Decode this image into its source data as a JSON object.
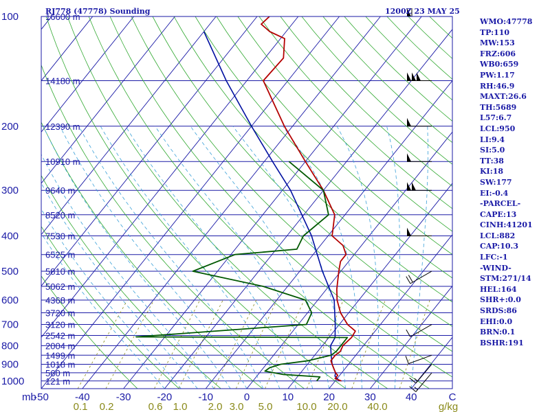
{
  "header": {
    "station": "RJ778 (47778) Sounding",
    "time": "1200Z 23 MAY 25"
  },
  "chart_data": {
    "type": "line",
    "title": "RJ778 (47778) Sounding",
    "subtitle": "1200Z 23 MAY 25",
    "xlabel": "",
    "ylabel": "mb",
    "xlim": [
      -50,
      50
    ],
    "ylim": [
      1000,
      100
    ],
    "y_log_scale": true,
    "pressure_ticks": [
      "100",
      "200",
      "300",
      "400",
      "500",
      "600",
      "700",
      "800",
      "900",
      "1000"
    ],
    "temperature_ticks": [
      "-50",
      "-40",
      "-30",
      "-20",
      "-10",
      "0",
      "10",
      "20",
      "30",
      "40",
      "C"
    ],
    "mixing_ratio_ticks": [
      "0.1",
      "0.2",
      "0.6",
      "1.0",
      "2.0",
      "3.0",
      "5.0",
      "10.0",
      "20.0",
      "40.0",
      "g/kg"
    ],
    "height_labels": [
      {
        "p": 1000,
        "text": "121 m"
      },
      {
        "p": 950,
        "text": "560 m"
      },
      {
        "p": 900,
        "text": "1018 m"
      },
      {
        "p": 850,
        "text": "1499 m"
      },
      {
        "p": 800,
        "text": "2004 m"
      },
      {
        "p": 750,
        "text": "2542 m"
      },
      {
        "p": 700,
        "text": "3120 m"
      },
      {
        "p": 650,
        "text": "3720 m"
      },
      {
        "p": 600,
        "text": "4368 m"
      },
      {
        "p": 550,
        "text": "5062 m"
      },
      {
        "p": 500,
        "text": "5810 m"
      },
      {
        "p": 450,
        "text": "6525 m"
      },
      {
        "p": 400,
        "text": "7530 m"
      },
      {
        "p": 350,
        "text": "8520 m"
      },
      {
        "p": 300,
        "text": "9640 m"
      },
      {
        "p": 250,
        "text": "10910 m"
      },
      {
        "p": 200,
        "text": "12390 m"
      },
      {
        "p": 150,
        "text": "14180 m"
      },
      {
        "p": 100,
        "text": "16600 m"
      }
    ],
    "series": [
      {
        "values": [
          [
            1000,
            21
          ],
          [
            970,
            19
          ],
          [
            950,
            18.5
          ],
          [
            900,
            16
          ],
          [
            850,
            14
          ],
          [
            800,
            12
          ],
          [
            760,
            11.5
          ],
          [
            700,
            9
          ],
          [
            600,
            4
          ],
          [
            500,
            -4.5
          ],
          [
            400,
            -14
          ],
          [
            300,
            -28
          ],
          [
            250,
            -38
          ],
          [
            200,
            -50
          ],
          [
            150,
            -65
          ],
          [
            110,
            -80
          ]
        ]
      },
      {
        "values": [
          [
            1000,
            21.5
          ],
          [
            985,
            19.5
          ],
          [
            965,
            19.5
          ],
          [
            950,
            18.5
          ],
          [
            930,
            17.5
          ],
          [
            900,
            16
          ],
          [
            880,
            15
          ],
          [
            850,
            15
          ],
          [
            830,
            15.5
          ],
          [
            800,
            15
          ],
          [
            760,
            15.5
          ],
          [
            760,
            15.5
          ],
          [
            730,
            15.2
          ],
          [
            700,
            12
          ],
          [
            650,
            8
          ],
          [
            600,
            4.7
          ],
          [
            560,
            2.5
          ],
          [
            500,
            -0.5
          ],
          [
            470,
            -2
          ],
          [
            450,
            -2
          ],
          [
            425,
            -4.5
          ],
          [
            400,
            -9
          ],
          [
            350,
            -12.5
          ],
          [
            300,
            -20
          ],
          [
            250,
            -30
          ],
          [
            200,
            -42
          ],
          [
            150,
            -56
          ],
          [
            130,
            -55.5
          ],
          [
            115,
            -59
          ],
          [
            110,
            -64
          ],
          [
            105,
            -67.5
          ],
          [
            100,
            -67
          ]
        ]
      },
      {
        "values": [
          [
            1000,
            15.5
          ],
          [
            975,
            15.5
          ],
          [
            960,
            6
          ],
          [
            940,
            1
          ],
          [
            920,
            1.5
          ],
          [
            900,
            3.5
          ],
          [
            880,
            9.5
          ],
          [
            850,
            14
          ],
          [
            830,
            14.5
          ],
          [
            800,
            14.5
          ],
          [
            760,
            14.5
          ],
          [
            757,
            -37
          ],
          [
            700,
            2
          ],
          [
            650,
            1
          ],
          [
            600,
            -3
          ],
          [
            550,
            -16
          ],
          [
            500,
            -36
          ],
          [
            450,
            -29
          ],
          [
            435,
            -15
          ],
          [
            400,
            -16
          ],
          [
            350,
            -14
          ],
          [
            300,
            -20
          ],
          [
            250,
            -34
          ]
        ]
      }
    ],
    "wind_barbs": [
      {
        "p": 950,
        "dir": 220,
        "spd": 15
      },
      {
        "p": 900,
        "dir": 220,
        "spd": 15
      },
      {
        "p": 850,
        "dir": 250,
        "spd": 10
      },
      {
        "p": 700,
        "dir": 240,
        "spd": 10
      },
      {
        "p": 500,
        "dir": 240,
        "spd": 20
      },
      {
        "p": 400,
        "dir": 270,
        "spd": 50
      },
      {
        "p": 300,
        "dir": 270,
        "spd": 100
      },
      {
        "p": 250,
        "dir": 270,
        "spd": 50
      },
      {
        "p": 200,
        "dir": 270,
        "spd": 50
      },
      {
        "p": 150,
        "dir": 270,
        "spd": 150
      },
      {
        "p": 100,
        "dir": 270,
        "spd": 60
      }
    ]
  },
  "stats": [
    "WMO:47778",
    "TP:110",
    "MW:153",
    "FRZ:606",
    "WB0:659",
    "PW:1.17",
    "RH:46.9",
    "MAXT:26.6",
    "TH:5689",
    "L57:6.7",
    "LCL:950",
    "LI:9.4",
    "SI:5.0",
    "TT:38",
    "KI:18",
    "SW:177",
    "EI:-0.4",
    "-PARCEL-",
    "CAPE:13",
    "CINH:41201",
    "LCL:882",
    "CAP:10.3",
    "LFC:-1",
    "-WIND-",
    "STM:271/14",
    "HEL:164",
    "SHR+:0.0",
    "SRDS:86",
    "EHI:0.0",
    "BRN:0.1",
    "BSHR:191"
  ],
  "colors": {
    "frame": "#1a1aa6",
    "isobar": "#1a1aa6",
    "isotherm": "#1a1aa6",
    "dry_adiabat": "#2fa82f",
    "moist_adiabat": "#3aa0d8",
    "mixing_ratio": "#8a8a1a",
    "temperature": "#b40000",
    "dewpoint": "#005800",
    "parcel": "#0010a0",
    "barb": "#000000",
    "text": "#1a1aa6"
  }
}
